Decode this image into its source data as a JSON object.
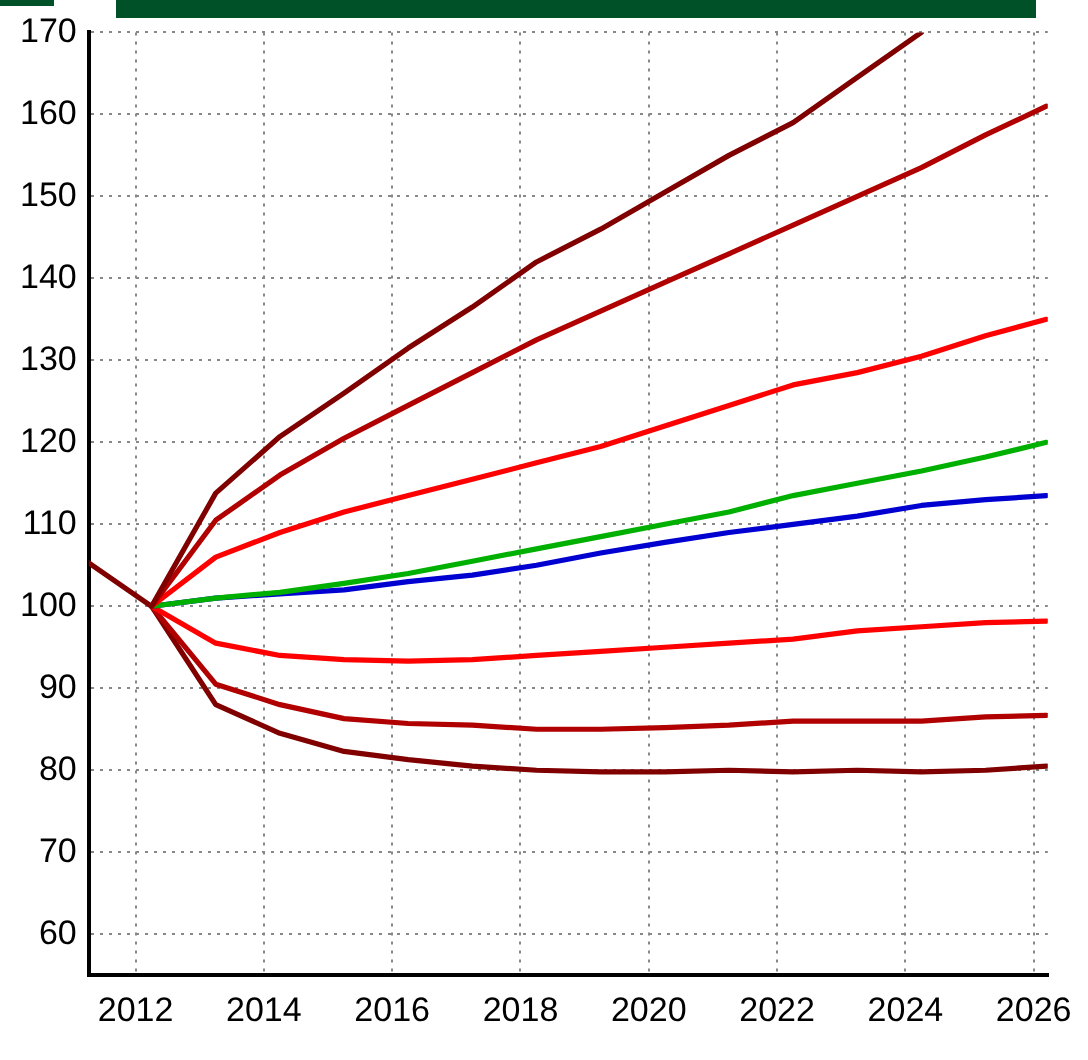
{
  "chart_data": {
    "type": "line",
    "x": [
      2012.25,
      2013.25,
      2014.25,
      2015.25,
      2016.25,
      2017.25,
      2018.25,
      2019.25,
      2020.25,
      2021.25,
      2022.25,
      2023.25,
      2024.25,
      2025.25,
      2026.2
    ],
    "series": [
      {
        "color": "#800000",
        "x": [
          2012.25,
          2013.25,
          2014.25,
          2015.25,
          2016.25,
          2017.25,
          2018.25,
          2019.25,
          2020.25,
          2021.25,
          2022.25,
          2023.25,
          2024.25
        ],
        "values": [
          100,
          113.8,
          120.7,
          126,
          131.5,
          136.5,
          142,
          146,
          150.5,
          155,
          159,
          164.5,
          170
        ]
      },
      {
        "color": "#b00000",
        "values": [
          100,
          110.5,
          116,
          120.5,
          124.5,
          128.5,
          132.5,
          136,
          139.5,
          143,
          146.5,
          150,
          153.5,
          157.5,
          161
        ]
      },
      {
        "color": "#ff0000",
        "values": [
          100,
          106,
          109,
          111.5,
          113.5,
          115.5,
          117.5,
          119.5,
          122,
          124.5,
          127,
          128.5,
          130.5,
          133,
          135
        ]
      },
      {
        "color": "#00b000",
        "values": [
          100,
          101,
          101.7,
          102.8,
          104,
          105.5,
          107,
          108.5,
          110,
          111.5,
          113.5,
          115,
          116.5,
          118.2,
          120
        ]
      },
      {
        "color": "#0000d0",
        "values": [
          100,
          101,
          101.5,
          102,
          103,
          103.8,
          105,
          106.5,
          107.8,
          109,
          110,
          111,
          112.3,
          113,
          113.5
        ]
      },
      {
        "color": "#ff0000",
        "values": [
          100,
          95.5,
          94,
          93.5,
          93.3,
          93.5,
          94,
          94.5,
          95,
          95.5,
          96,
          97,
          97.5,
          98,
          98.2
        ]
      },
      {
        "color": "#b00000",
        "values": [
          100,
          90.5,
          88,
          86.3,
          85.7,
          85.5,
          85,
          85,
          85.2,
          85.5,
          86,
          86,
          86,
          86.5,
          86.7
        ]
      },
      {
        "color": "#800000",
        "x": [
          2011.27,
          2012.25,
          2013.25,
          2014.25,
          2015.25,
          2016.25,
          2017.25,
          2018.25,
          2019.25,
          2020.25,
          2021.25,
          2022.25,
          2023.25,
          2024.25,
          2025.25,
          2026.2
        ],
        "values": [
          105.3,
          100,
          88,
          84.5,
          82.3,
          81.3,
          80.5,
          80,
          79.8,
          79.8,
          80,
          79.8,
          80,
          79.8,
          80,
          80.5
        ]
      }
    ],
    "xlim": [
      2011.27,
      2026.22
    ],
    "xticks": [
      2012,
      2014,
      2016,
      2018,
      2020,
      2022,
      2024,
      2026
    ],
    "ylim": [
      55,
      170
    ],
    "yticks": [
      60,
      70,
      80,
      90,
      100,
      110,
      120,
      130,
      140,
      150,
      160,
      170
    ],
    "grid": true,
    "legend": false,
    "marker": "none",
    "line_style": "solid"
  }
}
